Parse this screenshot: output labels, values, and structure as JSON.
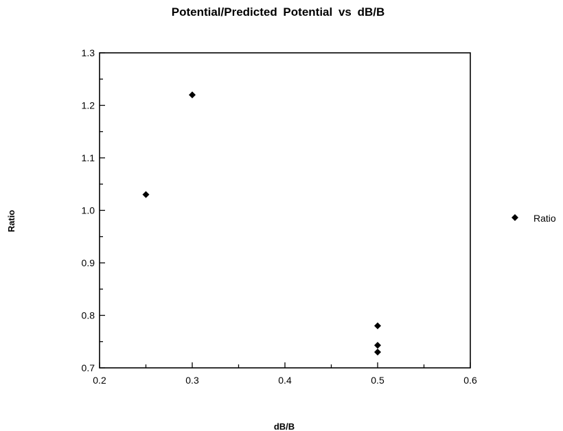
{
  "chart_data": {
    "type": "scatter",
    "title": "Potential/Predicted  Potential  vs  dB/B",
    "xlabel": "dB/B",
    "ylabel": "Ratio",
    "xlim": [
      0.2,
      0.6
    ],
    "ylim": [
      0.7,
      1.3
    ],
    "x_major_ticks": [
      "0.2",
      "0.3",
      "0.4",
      "0.5",
      "0.6"
    ],
    "y_major_ticks": [
      "0.7",
      "0.8",
      "0.9",
      "1.0",
      "1.1",
      "1.2",
      "1.3"
    ],
    "x_minor_step": 0.05,
    "y_minor_step": 0.05,
    "grid": false,
    "legend_position": "right",
    "marker": "diamond",
    "marker_color": "#000000",
    "series": [
      {
        "name": "Ratio",
        "points": [
          {
            "x": 0.25,
            "y": 1.03
          },
          {
            "x": 0.3,
            "y": 1.22
          },
          {
            "x": 0.5,
            "y": 0.78
          },
          {
            "x": 0.5,
            "y": 0.743
          },
          {
            "x": 0.5,
            "y": 0.73
          }
        ]
      }
    ]
  }
}
